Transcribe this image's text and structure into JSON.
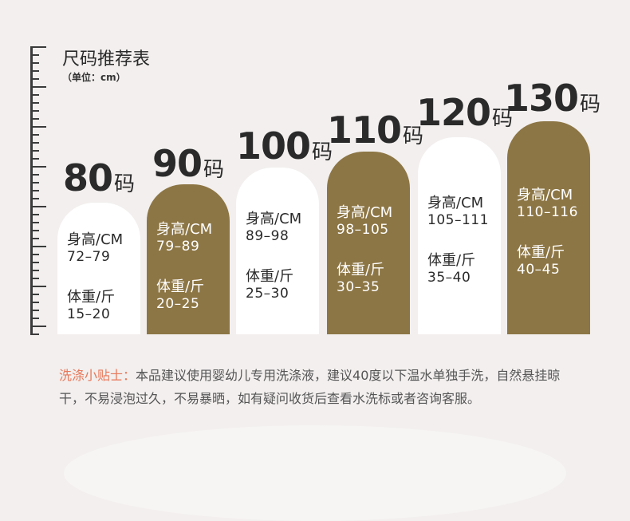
{
  "header": {
    "title": "尺码推荐表",
    "unit": "（单位：cm）"
  },
  "size_suffix": "码",
  "columns": [
    {
      "size": "80",
      "style": "white",
      "height_label": "身高/CM",
      "height": "72–79",
      "weight_label": "体重/斤",
      "weight": "15–20"
    },
    {
      "size": "90",
      "style": "gold",
      "height_label": "身高/CM",
      "height": "79–89",
      "weight_label": "体重/斤",
      "weight": "20–25"
    },
    {
      "size": "100",
      "style": "white",
      "height_label": "身高/CM",
      "height": "89–98",
      "weight_label": "体重/斤",
      "weight": "25–30"
    },
    {
      "size": "110",
      "style": "gold",
      "height_label": "身高/CM",
      "height": "98–105",
      "weight_label": "体重/斤",
      "weight": "30–35"
    },
    {
      "size": "120",
      "style": "white",
      "height_label": "身高/CM",
      "height": "105–111",
      "weight_label": "体重/斤",
      "weight": "35–40"
    },
    {
      "size": "130",
      "style": "gold",
      "height_label": "身高/CM",
      "height": "110–116",
      "weight_label": "体重/斤",
      "weight": "40–45"
    }
  ],
  "tips": {
    "head": "洗涤小贴士：",
    "body": "本品建议使用婴幼儿专用洗涤液，建议40度以下温水单独手洗，自然悬挂晾干，不易浸泡过久，不易暴晒，如有疑问收货后查看水洗标或者咨询客服。"
  },
  "colors": {
    "gold": "#8d7645",
    "white": "#ffffff",
    "tip_accent": "#e8785a",
    "background": "#f2efee"
  }
}
